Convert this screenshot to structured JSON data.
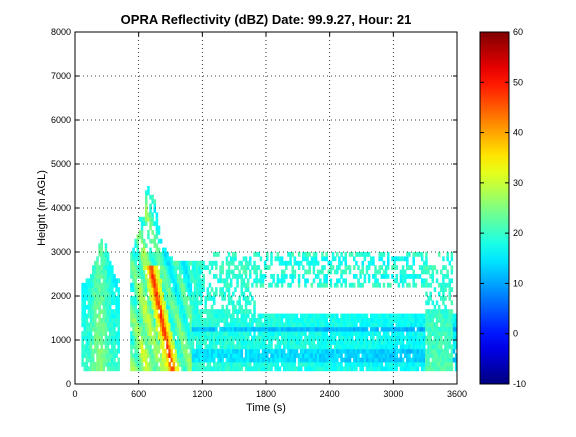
{
  "chart_data": {
    "type": "heatmap",
    "title": "OPRA Reflectivity (dBZ)  Date: 99.9.27, Hour: 21",
    "xlabel": "Time (s)",
    "ylabel": "Height (m AGL)",
    "xlim": [
      0,
      3600
    ],
    "ylim": [
      0,
      8000
    ],
    "xticks": [
      0,
      600,
      1200,
      1800,
      2400,
      3000,
      3600
    ],
    "yticks": [
      0,
      1000,
      2000,
      3000,
      4000,
      5000,
      6000,
      7000,
      8000
    ],
    "grid": true,
    "colormap": "jet",
    "colorbar": {
      "range": [
        -10,
        60
      ],
      "ticks": [
        -10,
        0,
        10,
        20,
        30,
        40,
        50,
        60
      ]
    },
    "features": [
      {
        "name": "bright band core",
        "t_start": 720,
        "t_end": 920,
        "h_top": 2600,
        "h_bottom": 300,
        "dbz": 45
      },
      {
        "name": "main convective cell",
        "t_start": 520,
        "t_end": 1100,
        "h_top": 4500,
        "h_bottom": 300,
        "dbz": 28
      },
      {
        "name": "early cell",
        "t_start": 60,
        "t_end": 420,
        "h_top": 3300,
        "h_bottom": 300,
        "dbz": 22
      },
      {
        "name": "anvil layer",
        "t_start": 1300,
        "t_end": 3550,
        "h_top": 3000,
        "h_bottom": 2200,
        "dbz": 18
      },
      {
        "name": "low stratiform layer",
        "t_start": 1100,
        "t_end": 3600,
        "h_top": 1600,
        "h_bottom": 300,
        "dbz": 16
      },
      {
        "name": "late cell",
        "t_start": 3300,
        "t_end": 3560,
        "h_top": 3000,
        "h_bottom": 300,
        "dbz": 22
      }
    ]
  }
}
